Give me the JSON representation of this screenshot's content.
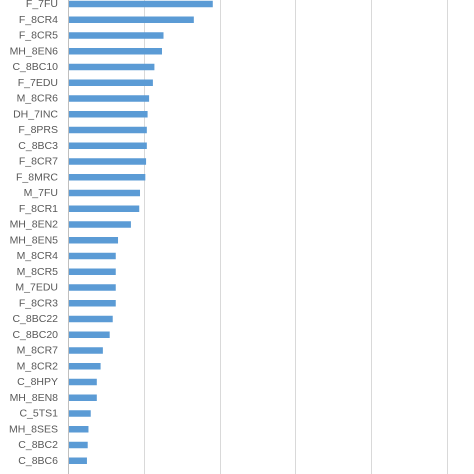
{
  "chart_data": {
    "type": "bar",
    "orientation": "horizontal",
    "categories": [
      "F_7FU",
      "F_8CR4",
      "F_8CR5",
      "MH_8EN6",
      "C_8BC10",
      "F_7EDU",
      "M_8CR6",
      "DH_7INC",
      "F_8PRS",
      "C_8BC3",
      "F_8CR7",
      "F_8MRC",
      "M_7FU",
      "F_8CR1",
      "MH_8EN2",
      "MH_8EN5",
      "M_8CR4",
      "M_8CR5",
      "M_7EDU",
      "F_8CR3",
      "C_8BC22",
      "C_8BC20",
      "M_8CR7",
      "M_8CR2",
      "C_8HPY",
      "MH_8EN8",
      "C_5TS1",
      "MH_8SES",
      "C_8BC2",
      "C_8BC6"
    ],
    "values": [
      0.191,
      0.166,
      0.126,
      0.124,
      0.114,
      0.112,
      0.107,
      0.105,
      0.104,
      0.104,
      0.103,
      0.102,
      0.095,
      0.094,
      0.083,
      0.066,
      0.063,
      0.063,
      0.063,
      0.063,
      0.059,
      0.055,
      0.046,
      0.043,
      0.038,
      0.038,
      0.03,
      0.027,
      0.026,
      0.025
    ],
    "xlim": [
      0,
      1
    ],
    "grid": true,
    "bar_color": "#5b9bd5",
    "title": "",
    "xlabel": "",
    "ylabel": ""
  }
}
